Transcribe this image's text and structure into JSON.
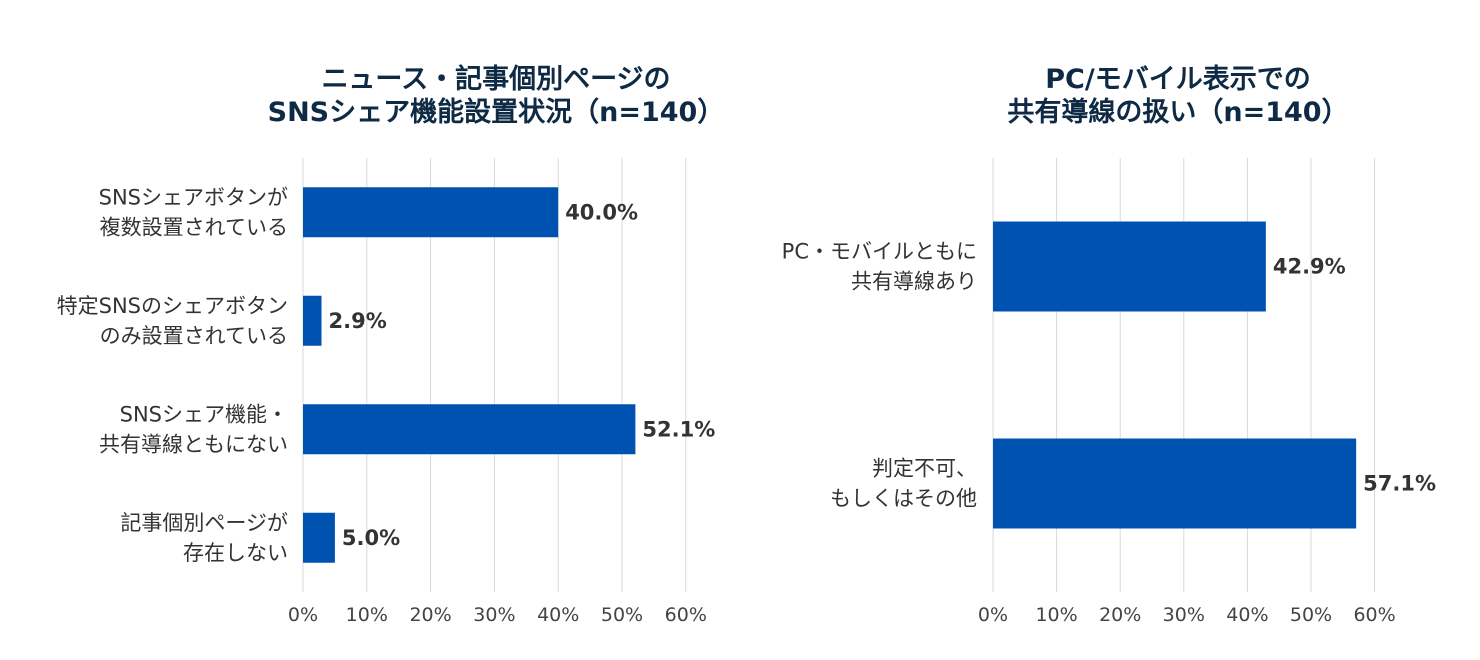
{
  "chart_data": [
    {
      "type": "bar",
      "orientation": "horizontal",
      "title": [
        "ニュース・記事個別ページの",
        "SNSシェア機能設置状況（n=140）"
      ],
      "categories": [
        [
          "SNSシェアボタンが",
          "複数設置されている"
        ],
        [
          "特定SNSのシェアボタン",
          "のみ設置されている"
        ],
        [
          "SNSシェア機能・",
          "共有導線ともにない"
        ],
        [
          "記事個別ページが",
          "存在しない"
        ]
      ],
      "values": [
        40.0,
        2.9,
        52.1,
        5.0
      ],
      "value_labels": [
        "40.0%",
        "2.9%",
        "52.1%",
        "5.0%"
      ],
      "xlim": [
        0,
        60
      ],
      "x_ticks": [
        "0%",
        "10%",
        "20%",
        "30%",
        "40%",
        "50%",
        "60%"
      ],
      "grid": true,
      "legend": "none",
      "bar_color": "#0052b0"
    },
    {
      "type": "bar",
      "orientation": "horizontal",
      "title": [
        "PC/モバイル表示での",
        "共有導線の扱い（n=140）"
      ],
      "categories": [
        [
          "PC・モバイルともに",
          "共有導線あり"
        ],
        [
          "判定不可、",
          "もしくはその他"
        ]
      ],
      "values": [
        42.9,
        57.1
      ],
      "value_labels": [
        "42.9%",
        "57.1%"
      ],
      "xlim": [
        0,
        60
      ],
      "x_ticks": [
        "0%",
        "10%",
        "20%",
        "30%",
        "40%",
        "50%",
        "60%"
      ],
      "grid": true,
      "legend": "none",
      "bar_color": "#0052b0"
    }
  ]
}
